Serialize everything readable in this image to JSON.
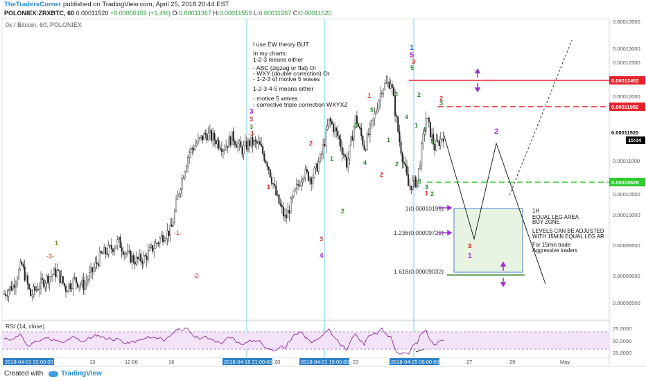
{
  "header": {
    "author": "TheTradersCorner",
    "published_text": "published on TradingView.com, April 25, 2018 20:44 EST",
    "symbol": "POLONIEX:ZRXBTC, 60",
    "last_price": "0.00011520",
    "change": "+0.00000159 (+1.4%)",
    "o_label": "O:",
    "o_value": "0.00011367",
    "h_label": "H:",
    "h_value": "0.00011559",
    "l_label": "L:",
    "l_value": "0.00011267",
    "c_label": "C:",
    "c_value": "0.00011520"
  },
  "pane_title": "0x / Bitcoin, 60, POLONIEX",
  "rsi_title": "RSI (14, close)",
  "notes": [
    "I use EW theory BUT",
    "In my charts:",
    "1-2-3 means either",
    "- ABC (zigzag or flat) Or",
    "- WXY (double correction) Or",
    "- 1-2-3 of motive 5 waves",
    "1-2-3-4-5 means either",
    "- motive 5 waves",
    "- corrective triple correction WXYXZ"
  ],
  "zone_notes": [
    "1H",
    "EQUAL LEG AREA",
    "BUY ZONE",
    "LEVELS CAN BE ADJUSTED",
    "WITH 15MIN EQUAL LEG AR",
    "For 15min trade",
    "Aggressive traders"
  ],
  "fib_labels": {
    "level_1": "1(0.00010159)",
    "level_1236": "1.236(0.00009729)",
    "level_1618": "1.618(0.00009032)"
  },
  "price_axis": {
    "ticks": [
      "0.00013500",
      "0.00013000",
      "0.00012500",
      "0.00012000",
      "0.00011000",
      "0.00010500",
      "0.00010000",
      "0.00009500",
      "0.00009000",
      "0.00008500"
    ],
    "badges": {
      "red_line": "0.00012452",
      "red_dashed": "0.00011982",
      "last": "0.00011520",
      "countdown": "15:04",
      "green_dashed": "0.00010629"
    }
  },
  "rsi_axis": {
    "ticks": [
      "75.0000",
      "50.0000",
      "25.0000"
    ]
  },
  "time_axis": {
    "labels": [
      "13",
      "12:00",
      "16",
      "20",
      "23",
      "27",
      "29",
      "May"
    ],
    "highlighted": [
      "2018-04-01 22:00:00",
      "2018-04-18 21:00:00",
      "2018-04-21 19:00:00",
      "2018-04-25 06:00:00"
    ]
  },
  "wave_labels": {
    "w1": "1",
    "w3": "-3-",
    "w1b": "-1-",
    "w2b": "-2-",
    "r1": "1",
    "r2": "2",
    "r3a": "3",
    "r3b": "3",
    "rneg3": "-3-",
    "r2c": "2",
    "p3a": "3",
    "p4a": "4",
    "p3b": "3",
    "p4b": "4",
    "g1a": "1",
    "g2a": "2",
    "g3a": "3",
    "g4a": "4",
    "g5a": "5",
    "g1b": "1",
    "g2b": "2",
    "g3b": "3",
    "top5": "5",
    "top3": "3",
    "top5b": "5",
    "top1": "1",
    "r1top": "1",
    "r2top": "2",
    "g3top": "3",
    "g1c": "1",
    "g2c": "2",
    "g3c": "3",
    "g4c": "4",
    "g5c": "5",
    "low3": "3",
    "low2": "2",
    "low1": "1",
    "proj2": "2",
    "proj3": "3",
    "proj1": "1"
  },
  "footer": {
    "created_with": "Created with",
    "brand": "TradingView"
  },
  "chart_data": {
    "type": "candlestick",
    "symbol": "POLONIEX:ZRXBTC",
    "timeframe": "60",
    "x_range": [
      "2018-04-10",
      "2018-05-01"
    ],
    "ylim": [
      8.2e-05,
      0.000136
    ],
    "levels": [
      {
        "label": "resistance",
        "value": 0.00012452,
        "style": "solid",
        "color": "#e8212b"
      },
      {
        "label": "resistance",
        "value": 0.00011982,
        "style": "dashed",
        "color": "#e8212b"
      },
      {
        "label": "last",
        "value": 0.0001152,
        "color": "#000000"
      },
      {
        "label": "support",
        "value": 0.00010629,
        "style": "dashed",
        "color": "#2fcc2f"
      }
    ],
    "fib_levels": [
      {
        "ratio": 1,
        "value": 0.00010159
      },
      {
        "ratio": 1.236,
        "value": 9.729e-05
      },
      {
        "ratio": 1.618,
        "value": 9.032e-05
      }
    ],
    "price_path_approx": [
      8.65e-05,
      8.8e-05,
      9.18e-05,
      8.62e-05,
      8.8e-05,
      8.95e-05,
      9.05e-05,
      8.75e-05,
      8.9e-05,
      8.8e-05,
      9.05e-05,
      9.35e-05,
      9.45e-05,
      9.6e-05,
      9.35e-05,
      9.25e-05,
      9.3e-05,
      9.5e-05,
      9.7e-05,
      9.8e-05,
      0.000106,
      0.000112,
      0.000114,
      0.0001155,
      0.0001145,
      0.000113,
      0.000115,
      0.0001125,
      0.000114,
      0.0001135,
      0.00011,
      0.000104,
      0.0001,
      0.0001045,
      0.0001085,
      0.0001075,
      0.000111,
      0.000118,
      0.000115,
      0.00011,
      0.0001185,
      0.000113,
      0.000118,
      0.000124,
      0.000125,
      0.000114,
      0.000106,
      0.000107,
      0.0001185,
      0.000113,
      0.0001152
    ],
    "rsi": {
      "ylim": [
        20,
        85
      ],
      "levels": [
        70,
        30
      ]
    },
    "projection_path": [
      [
        "2018-04-25 19:00",
        0.0001152
      ],
      [
        "2018-04-26 12:00",
        0.0001055
      ],
      [
        "2018-04-27 10:00",
        9.65e-05
      ],
      [
        "2018-04-28 08:00",
        0.000113
      ],
      [
        "2018-04-29 12:00",
        8.75e-05
      ]
    ]
  }
}
